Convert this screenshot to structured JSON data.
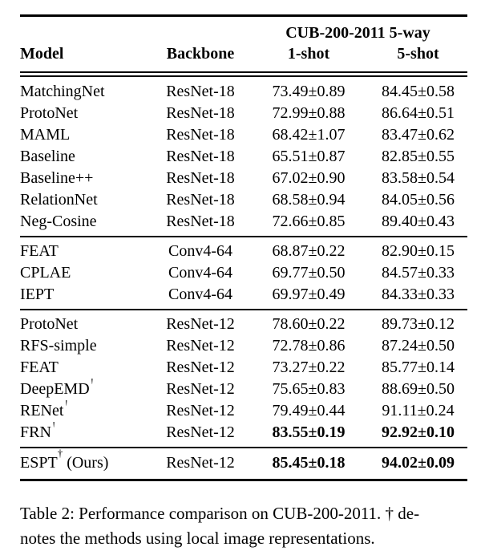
{
  "colors": {
    "text": "#000000",
    "background": "#ffffff",
    "rule": "#000000"
  },
  "dagger_symbol": "†",
  "table": {
    "header": {
      "group_title": "CUB-200-2011 5-way",
      "columns": [
        "Model",
        "Backbone",
        "1-shot",
        "5-shot"
      ]
    },
    "groups": [
      {
        "rows": [
          {
            "model": "MatchingNet",
            "dagger": false,
            "suffix": "",
            "backbone": "ResNet-18",
            "one_shot": "73.49±0.89",
            "five_shot": "84.45±0.58",
            "bold": false
          },
          {
            "model": "ProtoNet",
            "dagger": false,
            "suffix": "",
            "backbone": "ResNet-18",
            "one_shot": "72.99±0.88",
            "five_shot": "86.64±0.51",
            "bold": false
          },
          {
            "model": "MAML",
            "dagger": false,
            "suffix": "",
            "backbone": "ResNet-18",
            "one_shot": "68.42±1.07",
            "five_shot": "83.47±0.62",
            "bold": false
          },
          {
            "model": "Baseline",
            "dagger": false,
            "suffix": "",
            "backbone": "ResNet-18",
            "one_shot": "65.51±0.87",
            "five_shot": "82.85±0.55",
            "bold": false
          },
          {
            "model": "Baseline++",
            "dagger": false,
            "suffix": "",
            "backbone": "ResNet-18",
            "one_shot": "67.02±0.90",
            "five_shot": "83.58±0.54",
            "bold": false
          },
          {
            "model": "RelationNet",
            "dagger": false,
            "suffix": "",
            "backbone": "ResNet-18",
            "one_shot": "68.58±0.94",
            "five_shot": "84.05±0.56",
            "bold": false
          },
          {
            "model": "Neg-Cosine",
            "dagger": false,
            "suffix": "",
            "backbone": "ResNet-18",
            "one_shot": "72.66±0.85",
            "five_shot": "89.40±0.43",
            "bold": false
          }
        ]
      },
      {
        "rows": [
          {
            "model": "FEAT",
            "dagger": false,
            "suffix": "",
            "backbone": "Conv4-64",
            "one_shot": "68.87±0.22",
            "five_shot": "82.90±0.15",
            "bold": false
          },
          {
            "model": "CPLAE",
            "dagger": false,
            "suffix": "",
            "backbone": "Conv4-64",
            "one_shot": "69.77±0.50",
            "five_shot": "84.57±0.33",
            "bold": false
          },
          {
            "model": "IEPT",
            "dagger": false,
            "suffix": "",
            "backbone": "Conv4-64",
            "one_shot": "69.97±0.49",
            "five_shot": "84.33±0.33",
            "bold": false
          }
        ]
      },
      {
        "rows": [
          {
            "model": "ProtoNet",
            "dagger": false,
            "suffix": "",
            "backbone": "ResNet-12",
            "one_shot": "78.60±0.22",
            "five_shot": "89.73±0.12",
            "bold": false
          },
          {
            "model": "RFS-simple",
            "dagger": false,
            "suffix": "",
            "backbone": "ResNet-12",
            "one_shot": "72.78±0.86",
            "five_shot": "87.24±0.50",
            "bold": false
          },
          {
            "model": "FEAT",
            "dagger": false,
            "suffix": "",
            "backbone": "ResNet-12",
            "one_shot": "73.27±0.22",
            "five_shot": "85.77±0.14",
            "bold": false
          },
          {
            "model": "DeepEMD",
            "dagger": true,
            "suffix": "",
            "backbone": "ResNet-12",
            "one_shot": "75.65±0.83",
            "five_shot": "88.69±0.50",
            "bold": false
          },
          {
            "model": "RENet",
            "dagger": true,
            "suffix": "",
            "backbone": "ResNet-12",
            "one_shot": "79.49±0.44",
            "five_shot": "91.11±0.24",
            "bold": false
          },
          {
            "model": "FRN",
            "dagger": true,
            "suffix": "",
            "backbone": "ResNet-12",
            "one_shot": "83.55±0.19",
            "five_shot": "92.92±0.10",
            "bold": true
          }
        ]
      },
      {
        "ours": true,
        "rows": [
          {
            "model": "ESPT",
            "dagger": true,
            "suffix": " (Ours)",
            "backbone": "ResNet-12",
            "one_shot": "85.45±0.18",
            "five_shot": "94.02±0.09",
            "bold": true
          }
        ]
      }
    ]
  },
  "caption": {
    "line1": "Table 2: Performance comparison on CUB-200-2011. † de-",
    "line2": "notes the methods using local image representations."
  }
}
